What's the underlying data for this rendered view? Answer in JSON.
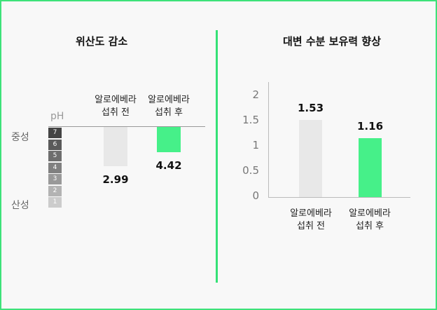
{
  "left_panel": {
    "title": "위산도 감소",
    "ph_label": "pH",
    "side_top": "중성",
    "side_bottom": "산성",
    "scale": [
      "7",
      "6",
      "5",
      "4",
      "3",
      "2",
      "1"
    ],
    "scale_colors": [
      "#444444",
      "#5a5a5a",
      "#6e6e6e",
      "#808080",
      "#999999",
      "#b3b3b3",
      "#cccccc"
    ]
  },
  "right_panel": {
    "title": "대변 수분 보유력 향상"
  },
  "chart_data": [
    {
      "type": "bar",
      "title": "위산도 감소",
      "ylabel": "pH",
      "categories": [
        "알로에베라\n섭취 전",
        "알로에베라\n섭취 후"
      ],
      "values": [
        2.99,
        4.42
      ],
      "value_labels": [
        "2.99",
        "4.42"
      ],
      "ylim": [
        1,
        7
      ],
      "colors": [
        "#e8e8e8",
        "#46f089"
      ]
    },
    {
      "type": "bar",
      "title": "대변 수분 보유력 향상",
      "categories": [
        "알로에베라\n섭취 전",
        "알로에베라\n섭취 후"
      ],
      "values": [
        1.53,
        1.16
      ],
      "value_labels": [
        "1.53",
        "1.16"
      ],
      "yticks": [
        "0",
        "0.5",
        "1",
        "1.5",
        "2"
      ],
      "ylim": [
        0,
        2
      ],
      "grid": false,
      "colors": [
        "#e8e8e8",
        "#46f089"
      ]
    }
  ],
  "colors": {
    "accent": "#35e276",
    "bar_before": "#e8e8e8",
    "bar_after": "#46f089"
  }
}
